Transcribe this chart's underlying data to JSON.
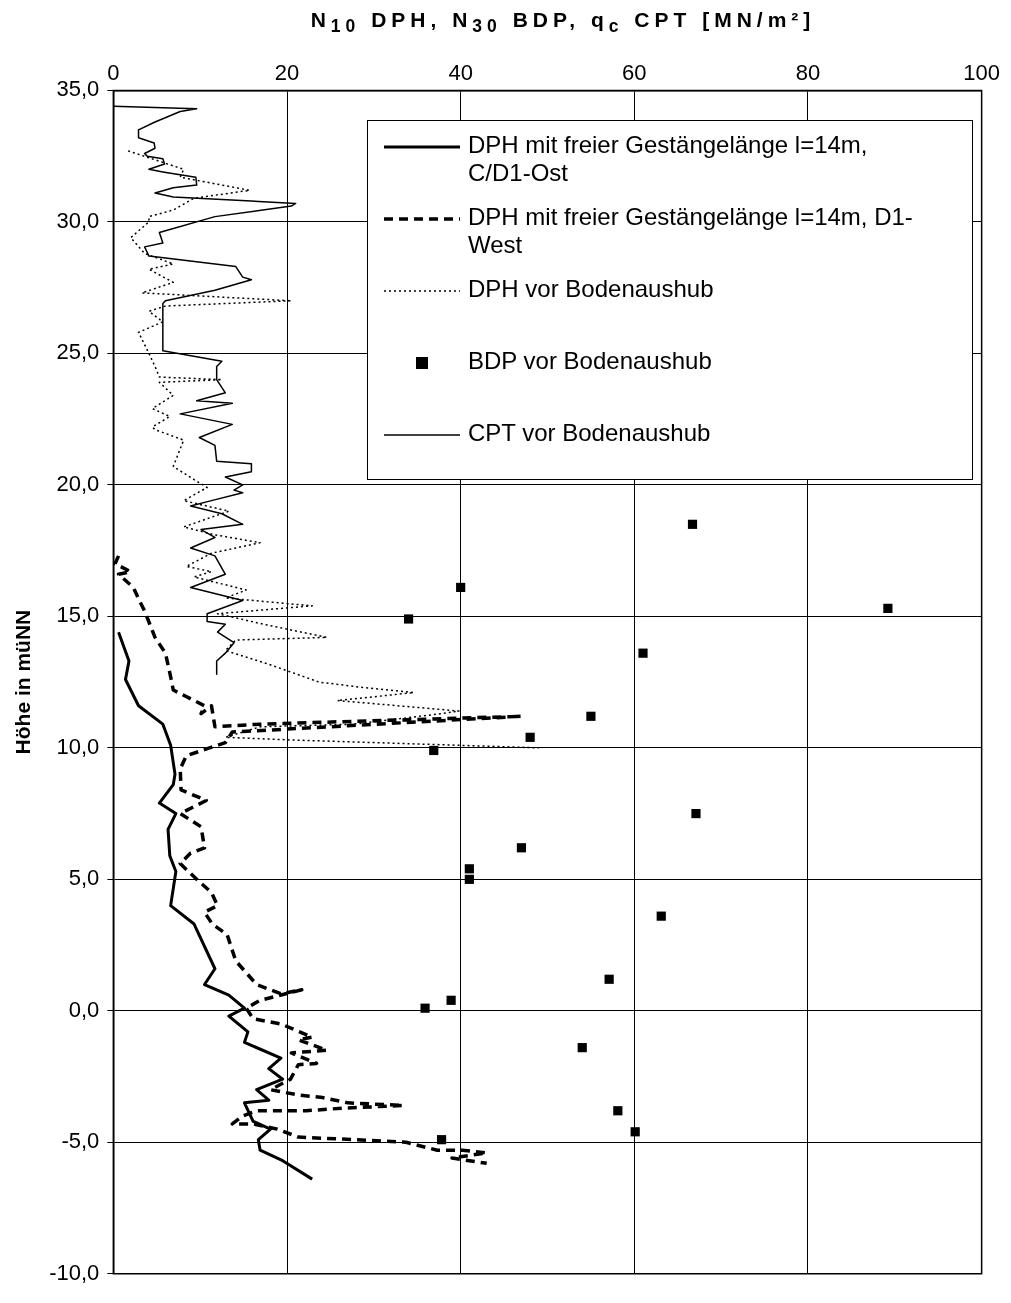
{
  "chart_data": {
    "type": "line",
    "xlabel": "N$_{10}$ DPH, N$_{30}$ BDP, q$_{c}$ CPT [MN/m²]",
    "ylabel": "Höhe in müNN",
    "xlim": [
      0,
      100
    ],
    "xticks": [
      0,
      20,
      40,
      60,
      80,
      100
    ],
    "ylim": [
      -10,
      35
    ],
    "yticks": [
      {
        "value": 35,
        "label": "35,0"
      },
      {
        "value": 30,
        "label": "30,0"
      },
      {
        "value": 25,
        "label": "25,0"
      },
      {
        "value": 20,
        "label": "20,0"
      },
      {
        "value": 15,
        "label": "15,0"
      },
      {
        "value": 10,
        "label": "10,0"
      },
      {
        "value": 5,
        "label": "5,0"
      },
      {
        "value": 0,
        "label": "0,0"
      },
      {
        "value": -5,
        "label": "-5,0"
      },
      {
        "value": -10,
        "label": "-10,0"
      }
    ],
    "grid": true,
    "legend": "top right",
    "series": [
      {
        "name": "DPH mit freier Gestängelänge l=14m, C/D1-Ost",
        "type": "line",
        "line_style": "solid",
        "marker": "none",
        "color": "#000000",
        "x": [
          0.6,
          1.8,
          1.4,
          2.9,
          5.7,
          6.6,
          7.1,
          6.9,
          5.3,
          7.2,
          6.3,
          6.5,
          7.2,
          6.6,
          9.3,
          11.7,
          10.5,
          13.3,
          15.1,
          13.3,
          15.5,
          15.1,
          19.3,
          17.9,
          19.5,
          16.5,
          17.9,
          15.1,
          16.1,
          18.1,
          16.7,
          16.9,
          19.5,
          22.9
        ],
        "values": [
          14.4,
          13.3,
          12.6,
          11.6,
          10.9,
          10.1,
          9.0,
          8.6,
          7.9,
          7.5,
          6.9,
          5.9,
          5.3,
          4.0,
          3.3,
          1.6,
          1.0,
          0.6,
          0.1,
          -0.2,
          -0.8,
          -1.2,
          -1.8,
          -2.2,
          -2.6,
          -3.0,
          -3.4,
          -3.5,
          -4.2,
          -4.5,
          -4.9,
          -5.3,
          -5.7,
          -6.4
        ]
      },
      {
        "name": "DPH mit freier Gestängelänge l=14m, D1-West",
        "type": "line",
        "line_style": "dashed",
        "marker": "none",
        "color": "#000000",
        "x": [
          0.6,
          0.2,
          2.0,
          0.6,
          2.3,
          3.0,
          3.6,
          4.2,
          4.8,
          6.0,
          6.6,
          6.9,
          10.5,
          10.1,
          11.3,
          11.7,
          16.9,
          47.0,
          13.7,
          12.9,
          8.4,
          7.7,
          7.8,
          10.7,
          7.7,
          10.1,
          10.5,
          8.9,
          7.7,
          9.6,
          11.3,
          12.0,
          10.5,
          11.4,
          13.1,
          14.1,
          16.5,
          19.3,
          21.7,
          16.9,
          15.3,
          16.1,
          19.3,
          22.9,
          21.3,
          24.6,
          20.5,
          23.4,
          21.3,
          20.4,
          18.1,
          21.3,
          24.1,
          27.0,
          33.4,
          26.5,
          22.2,
          16.5,
          14.9,
          13.7,
          16.1,
          18.9,
          21.3,
          27.7,
          33.7,
          37.3,
          40.2,
          43.0,
          39.0,
          43.0
        ],
        "values": [
          17.3,
          17.0,
          16.7,
          16.6,
          16.1,
          15.6,
          15.2,
          14.7,
          14.2,
          13.6,
          12.7,
          12.2,
          11.6,
          11.3,
          11.6,
          10.8,
          10.9,
          11.2,
          10.6,
          10.2,
          9.7,
          9.2,
          8.4,
          8.0,
          7.5,
          7.0,
          6.2,
          6.0,
          5.6,
          5.0,
          4.5,
          4.0,
          3.75,
          3.3,
          2.9,
          1.9,
          1.0,
          0.65,
          0.8,
          0.4,
          0.1,
          -0.3,
          -0.5,
          -1.0,
          -1.1,
          -1.5,
          -1.6,
          -2.0,
          -2.05,
          -2.6,
          -3.0,
          -3.2,
          -3.3,
          -3.5,
          -3.6,
          -3.7,
          -3.8,
          -3.8,
          -4.0,
          -4.3,
          -4.3,
          -4.5,
          -4.8,
          -4.9,
          -5.0,
          -5.3,
          -5.3,
          -5.4,
          -5.6,
          -5.8
        ]
      },
      {
        "name": "DPH vor Bodenaushub",
        "type": "line",
        "line_style": "dotted",
        "marker": "none",
        "color": "#000000",
        "x": [
          1.7,
          8.1,
          7.7,
          15.7,
          9.3,
          6.9,
          4.1,
          4.1,
          2.0,
          3.6,
          6.9,
          4.1,
          6.9,
          3.3,
          20.5,
          6.0,
          4.1,
          5.7,
          2.9,
          4.1,
          4.8,
          5.3,
          12.5,
          5.3,
          6.9,
          4.5,
          6.5,
          4.5,
          4.8,
          8.1,
          6.9,
          9.3,
          10.8,
          8.1,
          13.3,
          8.1,
          11.7,
          16.9,
          11.3,
          8.4,
          11.3,
          9.3,
          15.3,
          12.9,
          22.9,
          12.0,
          17.3,
          24.6,
          14.1,
          12.9,
          17.7,
          23.7,
          28.6,
          34.6,
          25.8,
          39.8,
          37.8,
          27.7,
          16.9,
          12.9,
          20.5,
          49.0
        ],
        "values": [
          32.7,
          32.0,
          31.7,
          31.2,
          30.9,
          30.45,
          30.2,
          30.0,
          29.4,
          28.8,
          28.4,
          28.2,
          27.7,
          27.3,
          27.0,
          26.8,
          26.6,
          26.2,
          25.8,
          25.0,
          24.5,
          24.1,
          24.0,
          23.9,
          23.4,
          22.9,
          22.6,
          22.2,
          22.1,
          21.7,
          20.7,
          20.2,
          19.9,
          19.4,
          19.0,
          18.4,
          18.1,
          17.8,
          17.4,
          16.9,
          16.7,
          16.5,
          16.0,
          15.7,
          15.4,
          15.1,
          14.7,
          14.2,
          14.1,
          13.7,
          13.2,
          12.5,
          12.3,
          12.1,
          11.8,
          11.4,
          11.3,
          10.9,
          10.8,
          10.4,
          10.3,
          10.0
        ]
      },
      {
        "name": "BDP vor Bodenaushub",
        "type": "scatter",
        "marker": "square",
        "color": "#000000",
        "x": [
          66.7,
          40.0,
          89.2,
          34.0,
          61.0,
          55.0,
          48.0,
          36.9,
          67.1,
          47.0,
          41.0,
          41.0,
          63.1,
          57.1,
          35.9,
          38.9,
          54.0,
          58.1,
          60.1,
          37.8
        ],
        "values": [
          18.5,
          16.1,
          15.3,
          14.9,
          13.6,
          11.2,
          10.4,
          9.9,
          7.5,
          6.2,
          5.4,
          5.0,
          3.6,
          1.2,
          0.1,
          0.4,
          -1.4,
          -3.8,
          -4.6,
          -4.9
        ]
      },
      {
        "name": "CPT vor Bodenaushub",
        "type": "line",
        "line_style": "solid",
        "marker": "none",
        "color": "#000000",
        "x": [
          0,
          9.6,
          7.7,
          4.8,
          2.9,
          2.9,
          4.7,
          4.8,
          3.6,
          3.9,
          5.7,
          5.9,
          4.1,
          5.7,
          7.5,
          9.5,
          9.6,
          6.9,
          4.8,
          6.9,
          21.0,
          20.5,
          11.7,
          5.3,
          5.7,
          3.6,
          4.1,
          14.1,
          14.9,
          15.9,
          11.7,
          6.0,
          5.7,
          5.7,
          12.5,
          11.9,
          11.9,
          12.9,
          9.6,
          13.7,
          7.7,
          13.7,
          9.9,
          11.7,
          11.9,
          15.9,
          15.9,
          12.9,
          14.9,
          13.9,
          14.9,
          11.3,
          8.9,
          12.5,
          14.9,
          10.1,
          11.7,
          8.9,
          11.7,
          12.9,
          8.9,
          14.9,
          10.8,
          10.8,
          12.9,
          12.0,
          13.9,
          12.9,
          11.9,
          11.9
        ],
        "values": [
          34.4,
          34.3,
          34.2,
          33.8,
          33.5,
          33.2,
          33.0,
          32.8,
          32.6,
          32.5,
          32.4,
          32.2,
          32.0,
          31.9,
          31.8,
          31.7,
          31.4,
          31.3,
          31.1,
          30.95,
          30.7,
          30.6,
          30.2,
          29.6,
          29.2,
          29.05,
          28.7,
          28.3,
          27.9,
          27.8,
          27.4,
          27.0,
          26.9,
          25.1,
          24.7,
          24.5,
          24.0,
          23.5,
          23.2,
          23.1,
          22.7,
          22.3,
          21.8,
          21.5,
          20.9,
          20.8,
          20.5,
          20.3,
          20.0,
          19.8,
          19.7,
          19.4,
          19.2,
          18.9,
          18.5,
          18.3,
          18.0,
          17.6,
          17.3,
          16.6,
          16.1,
          15.6,
          15.1,
          14.8,
          14.7,
          14.4,
          14.0,
          13.6,
          13.3,
          12.8
        ]
      }
    ]
  }
}
